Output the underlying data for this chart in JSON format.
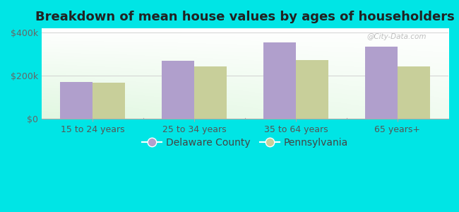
{
  "title": "Breakdown of mean house values by ages of householders",
  "categories": [
    "15 to 24 years",
    "25 to 34 years",
    "35 to 64 years",
    "65 years+"
  ],
  "series": {
    "Delaware County": [
      170000,
      270000,
      355000,
      335000
    ],
    "Pennsylvania": [
      168000,
      243000,
      272000,
      243000
    ]
  },
  "bar_colors": {
    "Delaware County": "#b09fcc",
    "Pennsylvania": "#c8cf9a"
  },
  "ylim": [
    0,
    420000
  ],
  "yticks": [
    0,
    200000,
    400000
  ],
  "ytick_labels": [
    "$0",
    "$200k",
    "$400k"
  ],
  "background_color": "#00e5e5",
  "title_fontsize": 13,
  "tick_fontsize": 9,
  "legend_fontsize": 10,
  "bar_width": 0.32,
  "watermark": "@City-Data.com"
}
